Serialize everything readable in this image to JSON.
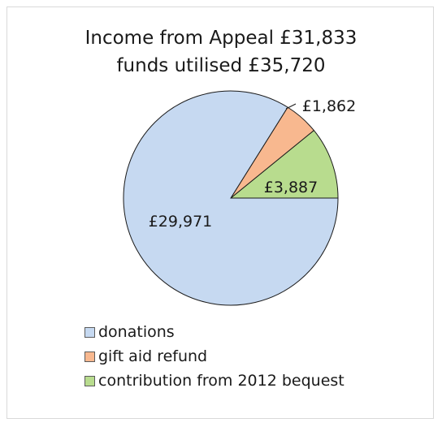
{
  "chart_data": {
    "type": "pie",
    "title_lines": [
      "Income from Appeal £31,833",
      "funds utilised £35,720"
    ],
    "slices": [
      {
        "name": "donations",
        "value": 29971,
        "label": "£29,971",
        "color": "#c6d9f1"
      },
      {
        "name": "gift aid refund",
        "value": 1862,
        "label": "£1,862",
        "color": "#f8b88f"
      },
      {
        "name": "contribution from 2012 bequest",
        "value": 3887,
        "label": "£3,887",
        "color": "#b8dc8e"
      }
    ],
    "legend_position": "bottom-left"
  }
}
